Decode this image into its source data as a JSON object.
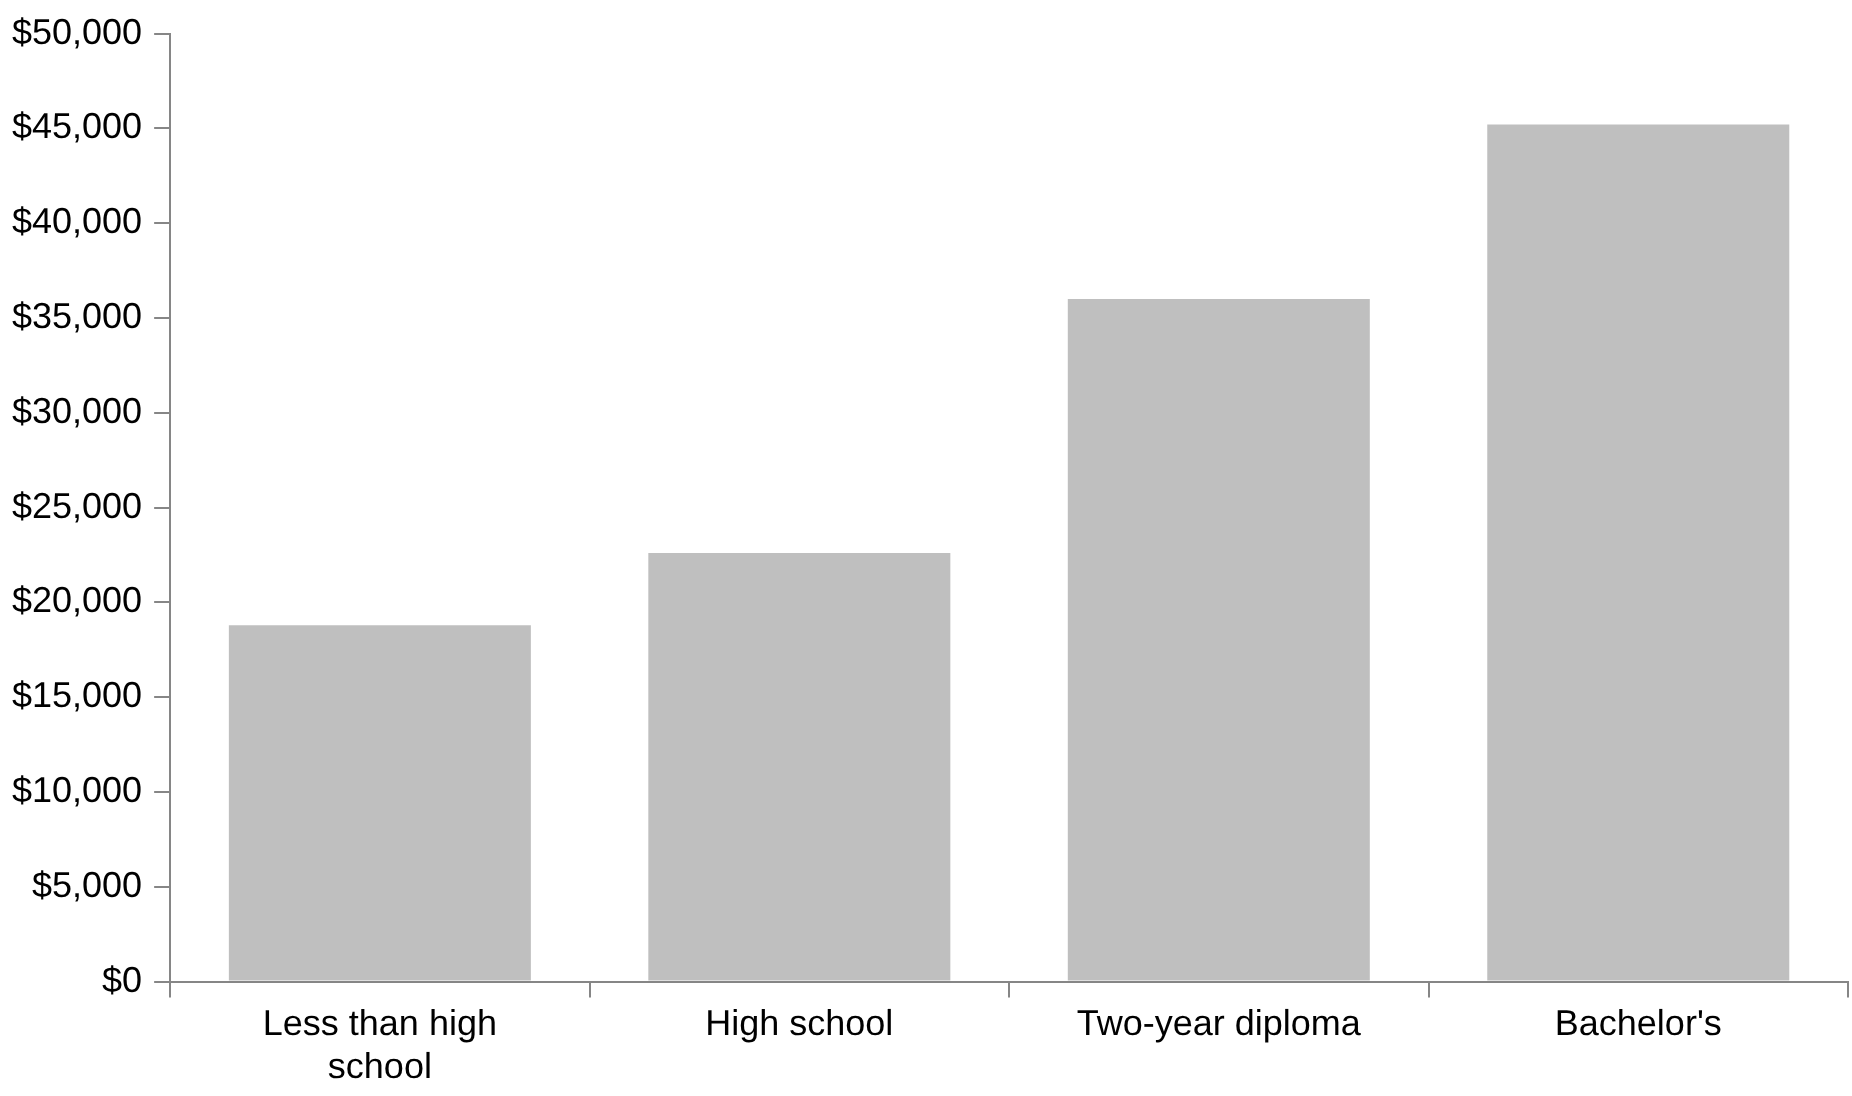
{
  "chart_data": {
    "type": "bar",
    "categories": [
      "Less than high school",
      "High school",
      "Two-year diploma",
      "Bachelor's"
    ],
    "values": [
      18800,
      22600,
      36000,
      45200
    ],
    "color": "#bfbfbf",
    "ylim": [
      0,
      50000
    ],
    "yticks": [
      {
        "value": 0,
        "label": "$0"
      },
      {
        "value": 5000,
        "label": "$5,000"
      },
      {
        "value": 10000,
        "label": "$10,000"
      },
      {
        "value": 15000,
        "label": "$15,000"
      },
      {
        "value": 20000,
        "label": "$20,000"
      },
      {
        "value": 25000,
        "label": "$25,000"
      },
      {
        "value": 30000,
        "label": "$30,000"
      },
      {
        "value": 35000,
        "label": "$35,000"
      },
      {
        "value": 40000,
        "label": "$40,000"
      },
      {
        "value": 45000,
        "label": "$45,000"
      },
      {
        "value": 50000,
        "label": "$50,000"
      }
    ],
    "grid": false,
    "legend": false
  }
}
